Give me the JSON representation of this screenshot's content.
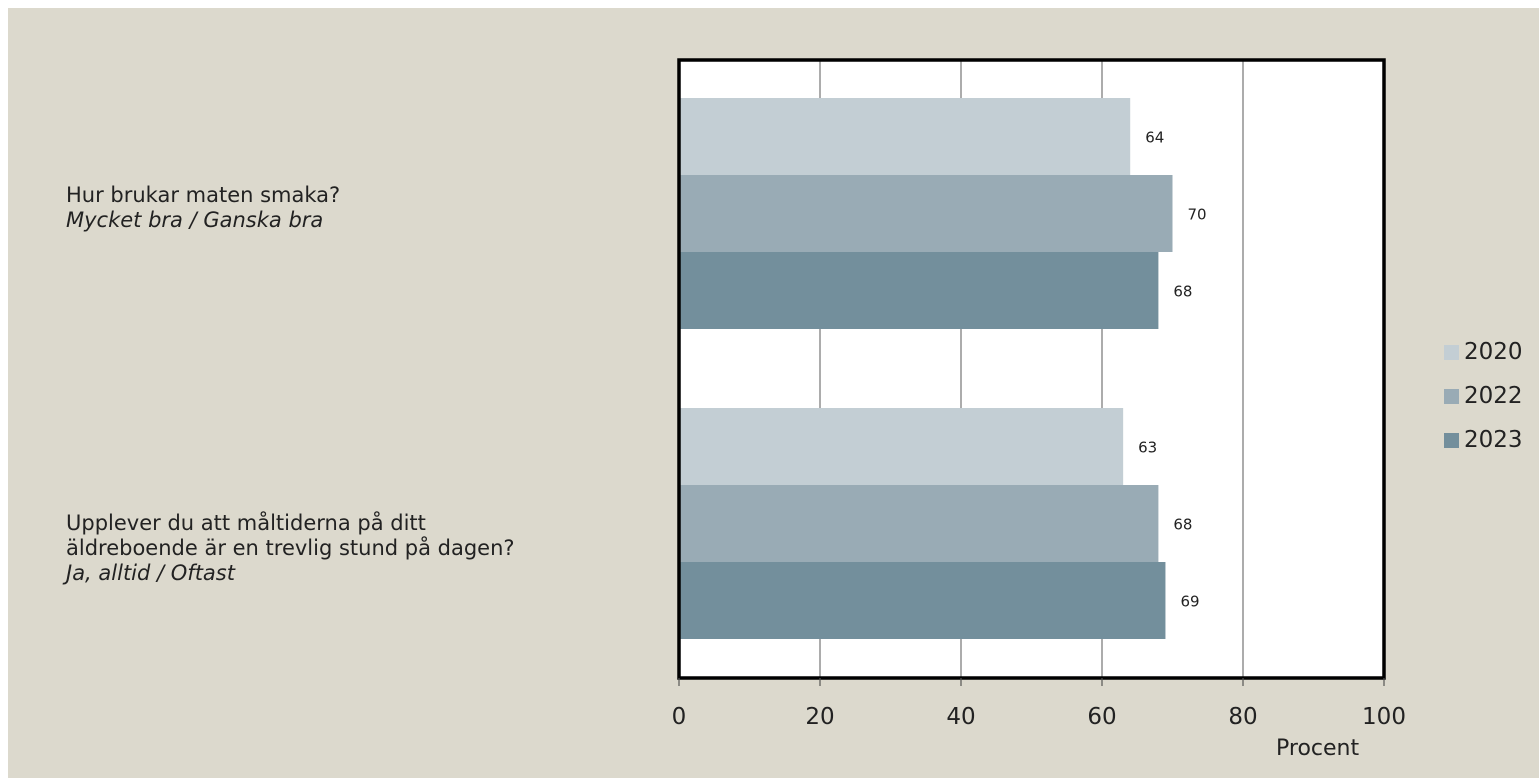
{
  "chart_data": {
    "type": "bar",
    "orientation": "horizontal",
    "categories": [
      {
        "id": "smak",
        "lines": [
          "Hur brukar maten smaka?"
        ],
        "sub": "Mycket bra / Ganska bra"
      },
      {
        "id": "maltid",
        "lines": [
          "Upplever du att måltiderna på ditt",
          "äldreboende är en trevlig stund på dagen?"
        ],
        "sub": "Ja, alltid / Oftast"
      }
    ],
    "series": [
      {
        "name": "2020",
        "color": "#c3ced4",
        "values": [
          64,
          63
        ]
      },
      {
        "name": "2022",
        "color": "#99abb5",
        "values": [
          70,
          68
        ]
      },
      {
        "name": "2023",
        "color": "#738f9c",
        "values": [
          68,
          69
        ]
      }
    ],
    "xlim": [
      0,
      100
    ],
    "xticks": [
      0,
      20,
      40,
      60,
      80,
      100
    ],
    "xlabel": "Procent",
    "grid": true,
    "legend_position": "right"
  }
}
